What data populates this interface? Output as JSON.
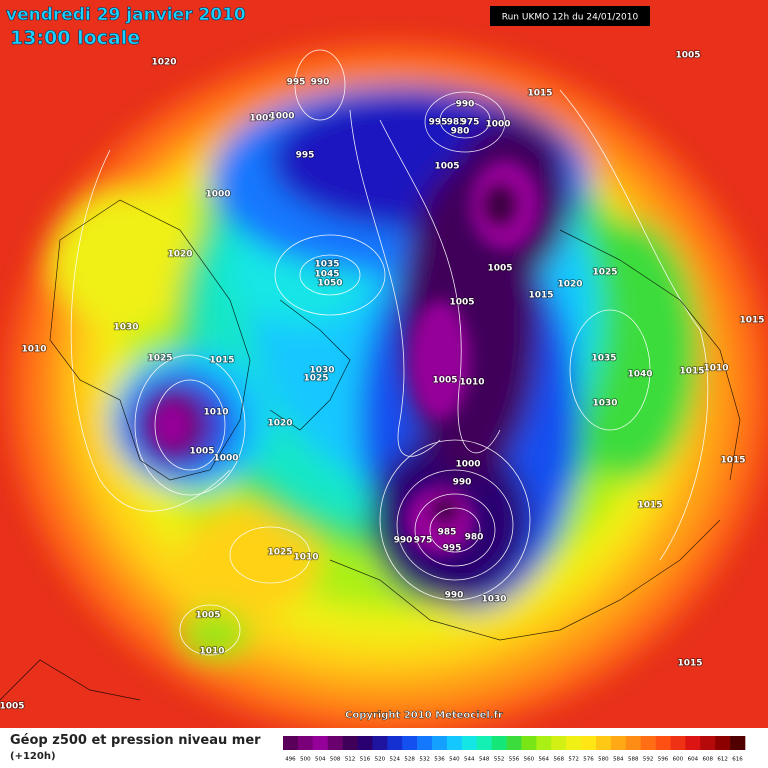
{
  "header": {
    "date": "vendredi 29 janvier 2010",
    "time": "13:00 locale",
    "run": "Run UKMO 12h du 24/01/2010"
  },
  "copyright": "Copyright 2010 Meteociel.fr",
  "footer": {
    "title": "Géop z500 et pression niveau mer",
    "lead": "(+120h)"
  },
  "legend": {
    "values": [
      496,
      500,
      504,
      508,
      512,
      516,
      520,
      524,
      528,
      532,
      536,
      540,
      544,
      548,
      552,
      556,
      560,
      564,
      568,
      572,
      576,
      580,
      584,
      588,
      592,
      596,
      600,
      604,
      608,
      612,
      616
    ],
    "colors": [
      "#5a005a",
      "#7a007a",
      "#96009a",
      "#6a006e",
      "#40005a",
      "#2a0070",
      "#1e14a0",
      "#1430d0",
      "#1450f0",
      "#1478ff",
      "#14a0ff",
      "#14c8ff",
      "#14e6e6",
      "#14f0b4",
      "#14e678",
      "#3cdc3c",
      "#78e614",
      "#aaf014",
      "#d2f014",
      "#f0f014",
      "#ffe614",
      "#ffc814",
      "#ffaa14",
      "#ff8c14",
      "#ff6e14",
      "#ff5014",
      "#f03214",
      "#dc1414",
      "#b40a0a",
      "#8c0000",
      "#500000"
    ]
  },
  "isobars": [
    1020,
    995,
    990,
    1005,
    1000,
    995,
    1000,
    1020,
    1030,
    1010,
    1025,
    1015,
    1010,
    1005,
    1000,
    1020,
    1035,
    1045,
    1050,
    1030,
    1025,
    990,
    995,
    985,
    975,
    980,
    1000,
    1015,
    1005,
    1005,
    1005,
    1015,
    1020,
    1025,
    1005,
    1010,
    1035,
    1040,
    1030,
    1015,
    1010,
    1015,
    1015,
    1015,
    1005,
    1000,
    990,
    990,
    975,
    985,
    980,
    995,
    990,
    1030,
    1025,
    1010,
    1005,
    1010,
    1015,
    1005
  ]
}
